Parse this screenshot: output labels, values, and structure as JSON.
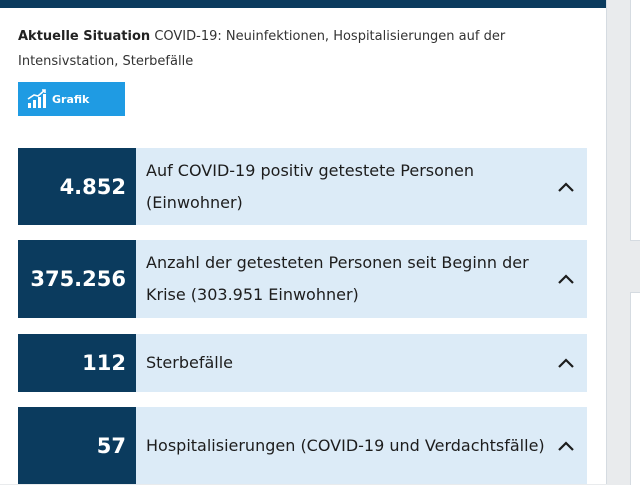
{
  "header": {
    "lead": "Aktuelle Situation",
    "description": "COVID-19: Neuinfektionen, Hospitalisierungen auf der Intensivstation, Sterbefälle"
  },
  "grafik_button": {
    "label": "Grafik",
    "icon": "bar-chart-icon"
  },
  "stats": [
    {
      "value": "4.852",
      "label": "Auf COVID-19 positiv getestete Personen (Einwohner)",
      "icon": "chevron-up-icon"
    },
    {
      "value": "375.256",
      "label": "Anzahl der getesteten Personen seit Beginn der Krise (303.951 Einwohner)",
      "icon": "chevron-up-icon"
    },
    {
      "value": "112",
      "label": "Sterbefälle",
      "icon": "chevron-up-icon"
    },
    {
      "value": "57",
      "label": "Hospitalisierungen (COVID-19 und Verdachtsfälle)",
      "icon": "chevron-up-icon"
    }
  ],
  "colors": {
    "navy": "#0b3b5e",
    "light_blue": "#dcebf7",
    "accent": "#1f9be3"
  }
}
